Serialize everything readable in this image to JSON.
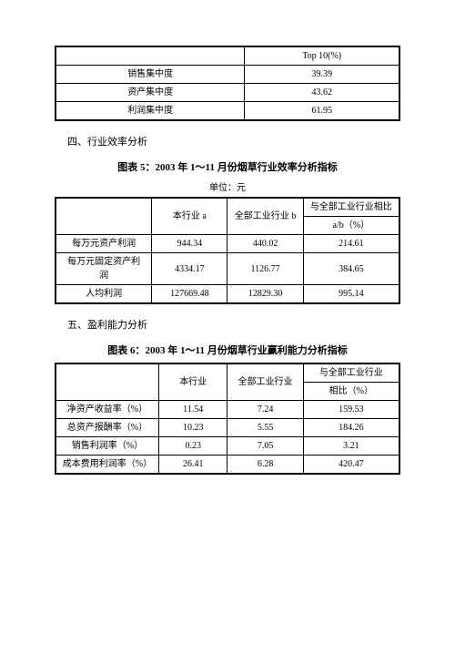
{
  "table1": {
    "header_c2": "Top 10(%)",
    "rows": [
      {
        "label": "销售集中度",
        "value": "39.39"
      },
      {
        "label": "资产集中度",
        "value": "43.62"
      },
      {
        "label": "利润集中度",
        "value": "61.95"
      }
    ]
  },
  "section4": "四、行业效率分析",
  "table2": {
    "title": "图表 5：2003 年 1～11 月份烟草行业效率分析指标",
    "unit": "单位：元",
    "header": {
      "c1": "",
      "c2": "本行业 a",
      "c3": "全部工业行业 b",
      "c4_line1": "与全部工业行业相比",
      "c4_line2": "a/b（%）"
    },
    "rows": [
      {
        "c1": "每万元资产利润",
        "c2": "944.34",
        "c3": "440.02",
        "c4": "214.61"
      },
      {
        "c1_line1": "每万元固定资产利",
        "c1_line2": "润",
        "c2": "4334.17",
        "c3": "1126.77",
        "c4": "384.65"
      },
      {
        "c1": "人均利润",
        "c2": "127669.48",
        "c3": "12829.30",
        "c4": "995.14"
      }
    ]
  },
  "section5": "五、盈利能力分析",
  "table3": {
    "title": "图表 6：2003 年 1～11 月份烟草行业赢利能力分析指标",
    "header": {
      "c1": "",
      "c2": "本行业",
      "c3": "全部工业行业",
      "c4_line1": "与全部工业行业",
      "c4_line2": "相比（%）"
    },
    "rows": [
      {
        "c1": "净资产收益率（%）",
        "c2": "11.54",
        "c3": "7.24",
        "c4": "159.53"
      },
      {
        "c1": "总资产报酬率（%）",
        "c2": "10.23",
        "c3": "5.55",
        "c4": "184.26"
      },
      {
        "c1": "销售利润率（%）",
        "c2": "0.23",
        "c3": "7.05",
        "c4": "3.21"
      },
      {
        "c1": "成本费用利润率（%）",
        "c2": "26.41",
        "c3": "6.28",
        "c4": "420.47"
      }
    ]
  }
}
